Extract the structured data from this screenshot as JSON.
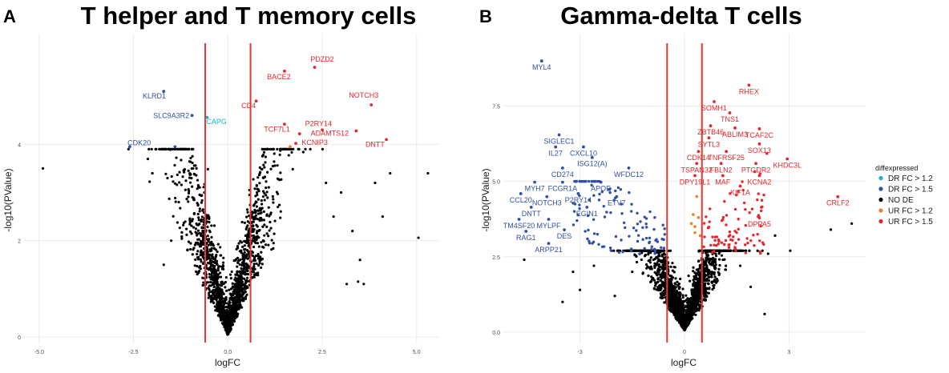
{
  "chart_data": [
    {
      "type": "scatter",
      "panel_label": "A",
      "title": "T helper and T memory cells",
      "xlabel": "logFC",
      "ylabel": "-log10(PValue)",
      "xlim": [
        -5.4,
        5.6
      ],
      "ylim": [
        -0.15,
        6.3
      ],
      "x_ticks": [
        "-5.0",
        "-2.5",
        "0.0",
        "2.5",
        "5.0"
      ],
      "x_tick_values": [
        -5,
        -2.5,
        0,
        2.5,
        5
      ],
      "y_ticks": [
        "0",
        "2",
        "4"
      ],
      "y_tick_values": [
        0,
        2,
        4
      ],
      "thresholds": [
        -0.6,
        0.6
      ],
      "threshold_color": "#e8372f",
      "background": {
        "seed": 11,
        "n": 1700,
        "spread_x": 0.55,
        "spread_y": 0.55,
        "min_y": 0.02,
        "max_y": 3.9
      },
      "sig_points": [
        {
          "group": "UR FC > 1.5",
          "x": 2.3,
          "y": 5.6
        },
        {
          "group": "UR FC > 1.5",
          "x": 1.5,
          "y": 5.52
        },
        {
          "group": "UR FC > 1.5",
          "x": 3.8,
          "y": 4.82
        },
        {
          "group": "UR FC > 1.5",
          "x": 0.75,
          "y": 4.9
        },
        {
          "group": "UR FC > 1.5",
          "x": 1.5,
          "y": 4.42
        },
        {
          "group": "UR FC > 1.5",
          "x": 2.5,
          "y": 4.3
        },
        {
          "group": "UR FC > 1.5",
          "x": 1.9,
          "y": 4.22
        },
        {
          "group": "UR FC > 1.5",
          "x": 3.4,
          "y": 4.28
        },
        {
          "group": "UR FC > 1.5",
          "x": 1.8,
          "y": 4.02
        },
        {
          "group": "UR FC > 1.5",
          "x": 4.2,
          "y": 4.1
        },
        {
          "group": "UR FC > 1.2",
          "x": 1.65,
          "y": 3.95
        },
        {
          "group": "DR FC > 1.5",
          "x": -1.7,
          "y": 5.1
        },
        {
          "group": "DR FC > 1.5",
          "x": -0.95,
          "y": 4.6
        },
        {
          "group": "DR FC > 1.5",
          "x": -2.6,
          "y": 3.95
        },
        {
          "group": "DR FC > 1.5",
          "x": -1.4,
          "y": 3.95
        },
        {
          "group": "DR FC > 1.2",
          "x": -0.55,
          "y": 4.56
        }
      ],
      "extra_points": [
        [
          -4.9,
          3.5
        ],
        [
          5.3,
          3.4
        ],
        [
          5.05,
          2.06
        ],
        [
          3.15,
          1.1
        ],
        [
          3.45,
          1.15
        ],
        [
          3.6,
          1.1
        ],
        [
          3.3,
          2.2
        ],
        [
          3.9,
          3.2
        ],
        [
          4.1,
          2.5
        ],
        [
          -2.0,
          3.4
        ],
        [
          -1.6,
          3.3
        ],
        [
          -1.5,
          2.0
        ],
        [
          -1.7,
          1.5
        ],
        [
          2.8,
          2.5
        ],
        [
          3.0,
          3.0
        ],
        [
          2.6,
          3.2
        ],
        [
          3.5,
          1.6
        ],
        [
          4.3,
          3.4
        ],
        [
          -1.2,
          3.9
        ],
        [
          -1.3,
          2.8
        ]
      ],
      "labels": [
        {
          "text": "PDZD2",
          "group": "UR FC > 1.5",
          "x": 2.5,
          "y": 5.72
        },
        {
          "text": "BACE2",
          "group": "UR FC > 1.5",
          "x": 1.35,
          "y": 5.35
        },
        {
          "text": "KLRD1",
          "group": "DR FC > 1.5",
          "x": -1.95,
          "y": 4.95
        },
        {
          "text": "CD4",
          "group": "UR FC > 1.5",
          "x": 0.55,
          "y": 4.75
        },
        {
          "text": "NOTCH3",
          "group": "UR FC > 1.5",
          "x": 3.6,
          "y": 4.97
        },
        {
          "text": "SLC9A3R2",
          "group": "DR FC > 1.5",
          "x": -1.5,
          "y": 4.55
        },
        {
          "text": "CAPG",
          "group": "DR FC > 1.2",
          "x": -0.3,
          "y": 4.42
        },
        {
          "text": "P2RY14",
          "group": "UR FC > 1.5",
          "x": 2.4,
          "y": 4.38
        },
        {
          "text": "TCF7L1",
          "group": "UR FC > 1.5",
          "x": 1.3,
          "y": 4.26
        },
        {
          "text": "ADAMTS12",
          "group": "UR FC > 1.5",
          "x": 2.7,
          "y": 4.18
        },
        {
          "text": "KCNIP3",
          "group": "UR FC > 1.5",
          "x": 2.3,
          "y": 3.99
        },
        {
          "text": "DNTT",
          "group": "UR FC > 1.5",
          "x": 3.9,
          "y": 3.95
        },
        {
          "text": "CDK20",
          "group": "DR FC > 1.5",
          "x": -2.35,
          "y": 3.98
        }
      ]
    },
    {
      "type": "scatter",
      "panel_label": "B",
      "title": "Gamma-delta T cells",
      "xlabel": "logFC",
      "ylabel": "-log10(PValue)",
      "xlim": [
        -5.2,
        5.2
      ],
      "ylim": [
        -0.4,
        9.9
      ],
      "x_ticks": [
        "-3",
        "0",
        "3"
      ],
      "x_tick_values": [
        -3,
        0,
        3
      ],
      "y_ticks": [
        "0.0",
        "2.5",
        "5.0",
        "7.5"
      ],
      "y_tick_values": [
        0,
        2.5,
        5,
        7.5
      ],
      "thresholds": [
        -0.5,
        0.5
      ],
      "threshold_color": "#e8372f",
      "background": {
        "seed": 23,
        "n": 1900,
        "spread_x": 0.5,
        "spread_y": 0.6,
        "min_y": 0.05,
        "max_y": 2.7
      },
      "cluster_up": {
        "seed": 5,
        "n": 85,
        "x_min": 0.55,
        "x_max": 2.4,
        "y_min": 2.6,
        "y_max": 8.0
      },
      "cluster_down": {
        "seed": 9,
        "n": 120,
        "x_min": -3.2,
        "x_max": -0.55,
        "y_min": 2.6,
        "y_max": 5.0
      },
      "orange_points": [
        [
          0.2,
          3.6
        ],
        [
          0.25,
          3.9
        ],
        [
          0.3,
          3.3
        ],
        [
          0.35,
          4.5
        ],
        [
          0.4,
          3.8
        ],
        [
          0.3,
          3.5
        ],
        [
          0.45,
          3.2
        ]
      ],
      "extra_points": [
        [
          4.8,
          3.6
        ],
        [
          4.2,
          3.4
        ],
        [
          2.6,
          3.2
        ],
        [
          2.4,
          2.6
        ],
        [
          -4.6,
          2.4
        ],
        [
          -3.5,
          1.0
        ],
        [
          -3.0,
          1.4
        ],
        [
          -2.0,
          1.2
        ],
        [
          -1.5,
          2.0
        ],
        [
          1.9,
          1.5
        ],
        [
          2.3,
          0.6
        ],
        [
          -2.6,
          2.2
        ],
        [
          -3.2,
          2.0
        ],
        [
          1.6,
          2.2
        ]
      ],
      "labels": [
        {
          "text": "MYL4",
          "group": "DR FC > 1.5",
          "x": -4.1,
          "y": 8.7
        },
        {
          "text": "RHEX",
          "group": "UR FC > 1.5",
          "x": 1.85,
          "y": 7.9
        },
        {
          "text": "SOMH1",
          "group": "UR FC > 1.5",
          "x": 0.85,
          "y": 7.35
        },
        {
          "text": "TNS1",
          "group": "UR FC > 1.5",
          "x": 1.3,
          "y": 6.98
        },
        {
          "text": "ZBTB46",
          "group": "UR FC > 1.5",
          "x": 0.75,
          "y": 6.55
        },
        {
          "text": "ABLIM3",
          "group": "UR FC > 1.5",
          "x": 1.45,
          "y": 6.48
        },
        {
          "text": "TCAF2C",
          "group": "UR FC > 1.5",
          "x": 2.15,
          "y": 6.45
        },
        {
          "text": "SYTL3",
          "group": "UR FC > 1.5",
          "x": 0.7,
          "y": 6.15
        },
        {
          "text": "SOX13",
          "group": "UR FC > 1.5",
          "x": 2.15,
          "y": 5.95
        },
        {
          "text": "CDK14",
          "group": "UR FC > 1.5",
          "x": 0.4,
          "y": 5.7
        },
        {
          "text": "TNFRSF25",
          "group": "UR FC > 1.5",
          "x": 1.2,
          "y": 5.7
        },
        {
          "text": "KHDC3L",
          "group": "UR FC > 1.5",
          "x": 2.95,
          "y": 5.45
        },
        {
          "text": "TSPAN32",
          "group": "UR FC > 1.5",
          "x": 0.35,
          "y": 5.3
        },
        {
          "text": "FBLN2",
          "group": "UR FC > 1.5",
          "x": 1.05,
          "y": 5.3
        },
        {
          "text": "PTGDR2",
          "group": "UR FC > 1.5",
          "x": 2.05,
          "y": 5.3
        },
        {
          "text": "DPY19L1",
          "group": "UR FC > 1.5",
          "x": 0.3,
          "y": 4.9
        },
        {
          "text": "MAF",
          "group": "UR FC > 1.5",
          "x": 1.1,
          "y": 4.9
        },
        {
          "text": "KCNA2",
          "group": "UR FC > 1.5",
          "x": 2.15,
          "y": 4.9
        },
        {
          "text": "KIF1A",
          "group": "UR FC > 1.5",
          "x": 1.6,
          "y": 4.55
        },
        {
          "text": "CRLF2",
          "group": "UR FC > 1.5",
          "x": 4.4,
          "y": 4.2
        },
        {
          "text": "DPPA5",
          "group": "UR FC > 1.5",
          "x": 2.15,
          "y": 3.5
        },
        {
          "text": "SIGLEC1",
          "group": "DR FC > 1.5",
          "x": -3.6,
          "y": 6.25
        },
        {
          "text": "IL27",
          "group": "DR FC > 1.5",
          "x": -3.7,
          "y": 5.85
        },
        {
          "text": "CXCL10",
          "group": "DR FC > 1.5",
          "x": -2.9,
          "y": 5.85
        },
        {
          "text": "ISG12(A)",
          "group": "DR FC > 1.5",
          "x": -2.65,
          "y": 5.5
        },
        {
          "text": "CD274",
          "group": "DR FC > 1.5",
          "x": -3.5,
          "y": 5.15
        },
        {
          "text": "WFDC12",
          "group": "DR FC > 1.5",
          "x": -1.6,
          "y": 5.15
        },
        {
          "text": "MYH7",
          "group": "DR FC > 1.5",
          "x": -4.3,
          "y": 4.68
        },
        {
          "text": "FCGR1A",
          "group": "DR FC > 1.5",
          "x": -3.5,
          "y": 4.68
        },
        {
          "text": "APOE",
          "group": "DR FC > 1.5",
          "x": -2.4,
          "y": 4.68
        },
        {
          "text": "CCL20",
          "group": "DR FC > 1.5",
          "x": -4.7,
          "y": 4.3
        },
        {
          "text": "NOTCH3",
          "group": "DR FC > 1.5",
          "x": -3.95,
          "y": 4.2
        },
        {
          "text": "P2RY14",
          "group": "DR FC > 1.5",
          "x": -3.05,
          "y": 4.3
        },
        {
          "text": "ETV7",
          "group": "DR FC > 1.5",
          "x": -1.95,
          "y": 4.2
        },
        {
          "text": "DNTT",
          "group": "DR FC > 1.5",
          "x": -4.4,
          "y": 3.85
        },
        {
          "text": "EGIN1",
          "group": "DR FC > 1.5",
          "x": -2.8,
          "y": 3.85
        },
        {
          "text": "TM4SF20",
          "group": "DR FC > 1.5",
          "x": -4.75,
          "y": 3.45
        },
        {
          "text": "MYLPF",
          "group": "DR FC > 1.5",
          "x": -3.9,
          "y": 3.45
        },
        {
          "text": "DES",
          "group": "DR FC > 1.5",
          "x": -3.45,
          "y": 3.1
        },
        {
          "text": "RAG1",
          "group": "DR FC > 1.5",
          "x": -4.55,
          "y": 3.05
        },
        {
          "text": "ARPP21",
          "group": "DR FC > 1.5",
          "x": -3.9,
          "y": 2.65
        }
      ]
    }
  ],
  "legend": {
    "title": "diffexpressed",
    "entries": [
      {
        "label": "DR FC > 1.2",
        "color": "#17b2c9"
      },
      {
        "label": "DR FC > 1.5",
        "color": "#2f4fa8"
      },
      {
        "label": "NO DE",
        "color": "#000000"
      },
      {
        "label": "UR FC > 1.2",
        "color": "#f07f23"
      },
      {
        "label": "UR FC > 1.5",
        "color": "#e8252a"
      }
    ]
  },
  "colors": {
    "UR FC > 1.5": "#e8252a",
    "UR FC > 1.2": "#f07f23",
    "DR FC > 1.5": "#2f4fa8",
    "DR FC > 1.2": "#17b2c9",
    "NO DE": "#000000"
  }
}
